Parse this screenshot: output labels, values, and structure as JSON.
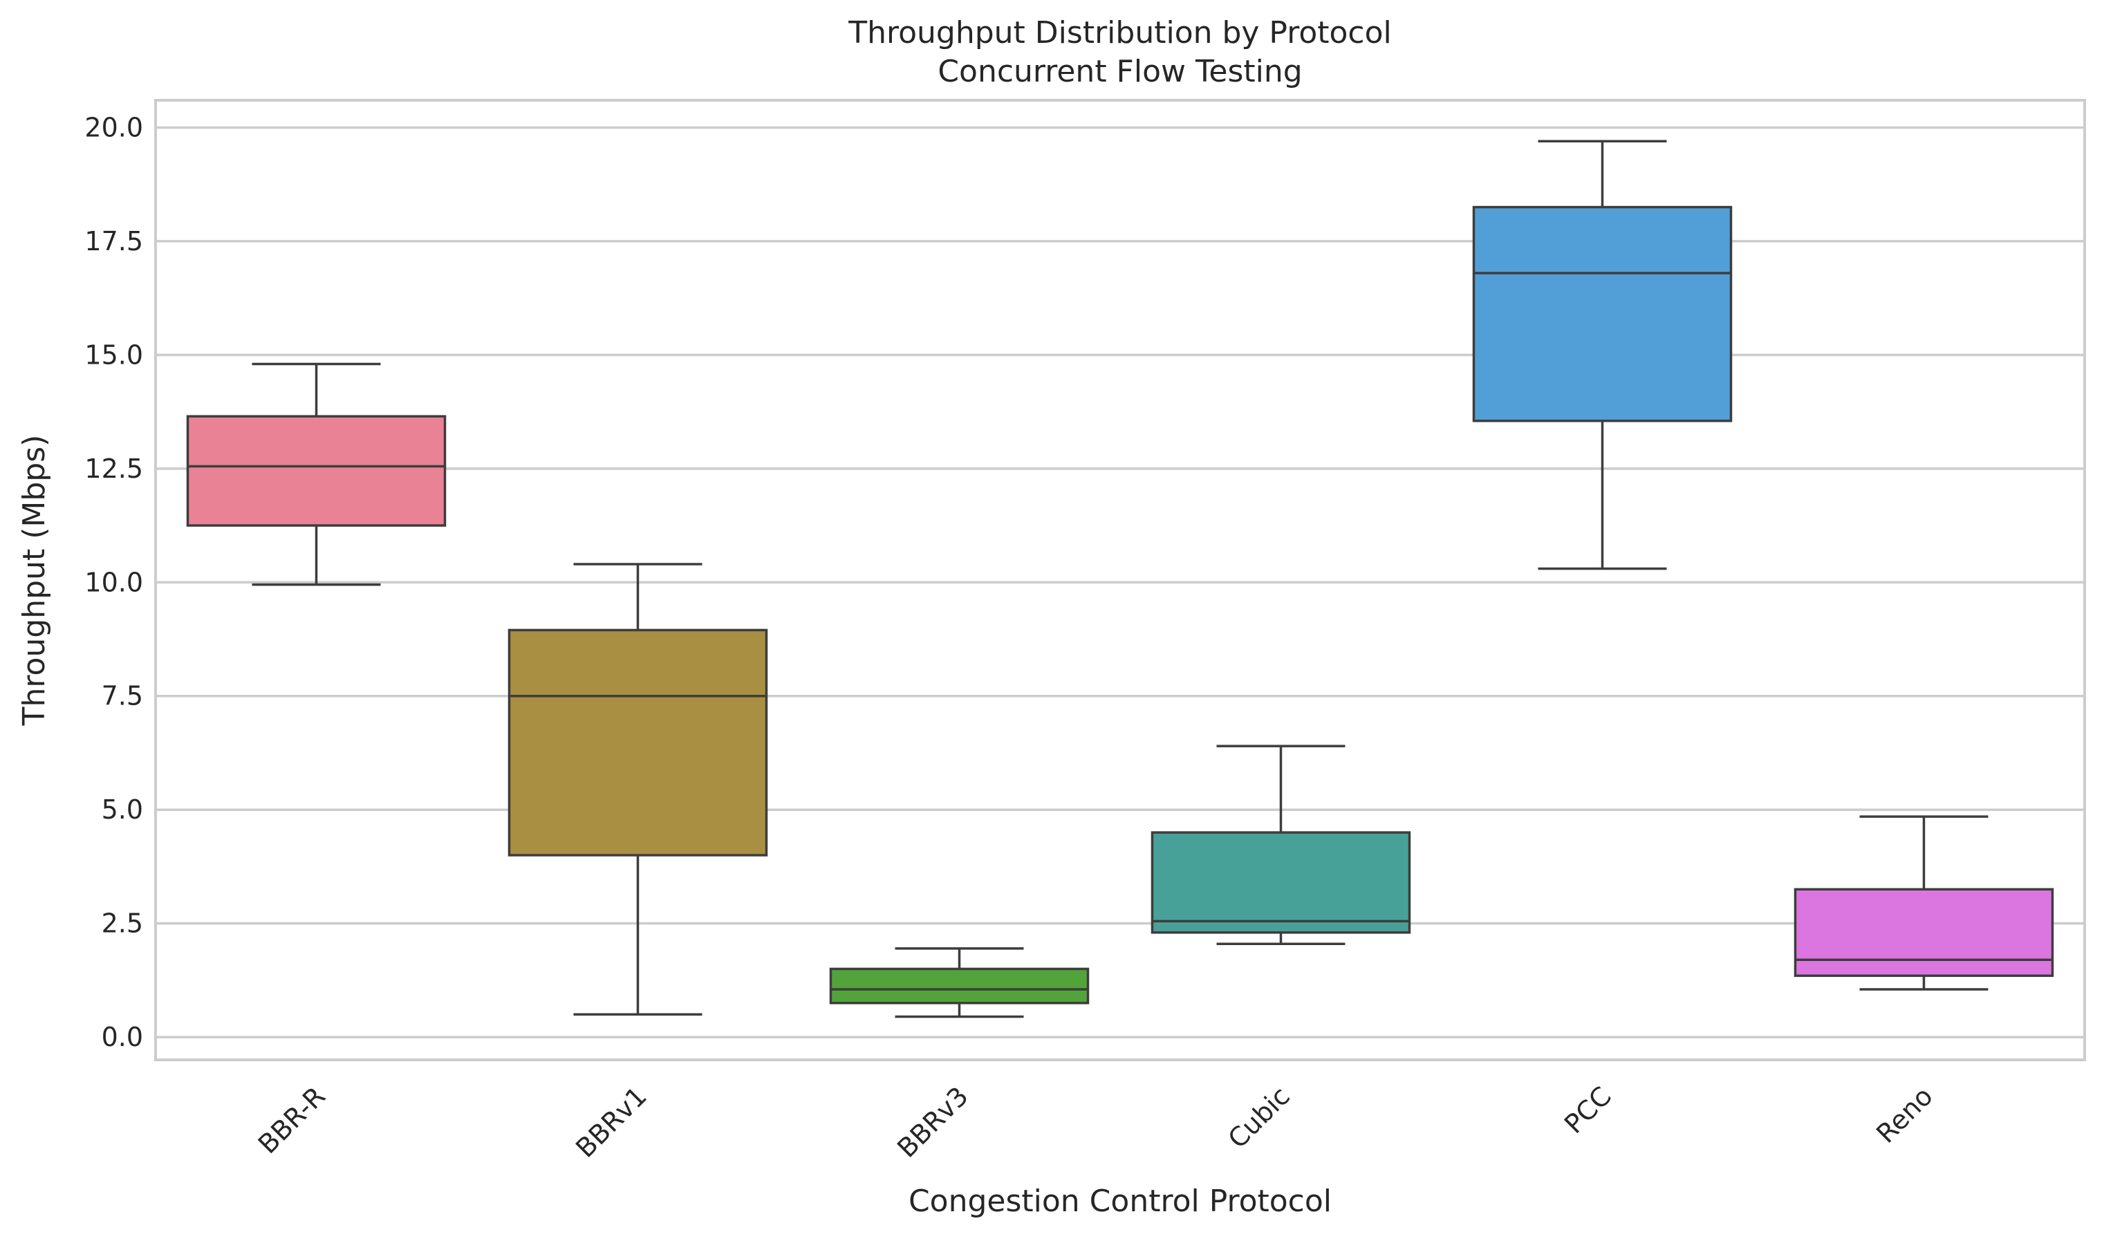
{
  "chart_data": {
    "type": "box",
    "title": "Throughput Distribution by Protocol",
    "subtitle": "Concurrent Flow Testing",
    "xlabel": "Congestion Control Protocol",
    "ylabel": "Throughput (Mbps)",
    "ylim": [
      -0.5,
      20.6
    ],
    "yticks": [
      0.0,
      2.5,
      5.0,
      7.5,
      10.0,
      12.5,
      15.0,
      17.5,
      20.0
    ],
    "ytick_labels": [
      "0.0",
      "2.5",
      "5.0",
      "7.5",
      "10.0",
      "12.5",
      "15.0",
      "17.5",
      "20.0"
    ],
    "grid": "horizontal",
    "categories": [
      "BBR-R",
      "BBRv1",
      "BBRv3",
      "Cubic",
      "PCC",
      "Reno"
    ],
    "boxes": [
      {
        "name": "BBR-R",
        "whisker_low": 9.95,
        "q1": 11.25,
        "median": 12.55,
        "q3": 13.65,
        "whisker_high": 14.8,
        "color": "#e88294"
      },
      {
        "name": "BBRv1",
        "whisker_low": 0.5,
        "q1": 4.0,
        "median": 7.5,
        "q3": 8.95,
        "whisker_high": 10.4,
        "color": "#a98f41"
      },
      {
        "name": "BBRv3",
        "whisker_low": 0.45,
        "q1": 0.75,
        "median": 1.05,
        "q3": 1.5,
        "whisker_high": 1.95,
        "color": "#52a43a"
      },
      {
        "name": "Cubic",
        "whisker_low": 2.05,
        "q1": 2.3,
        "median": 2.55,
        "q3": 4.5,
        "whisker_high": 6.4,
        "color": "#48a199"
      },
      {
        "name": "PCC",
        "whisker_low": 10.3,
        "q1": 13.55,
        "median": 16.8,
        "q3": 18.25,
        "whisker_high": 19.7,
        "color": "#529fd7"
      },
      {
        "name": "Reno",
        "whisker_low": 1.05,
        "q1": 1.35,
        "median": 1.7,
        "q3": 3.25,
        "whisker_high": 4.85,
        "color": "#db76e0"
      }
    ]
  }
}
